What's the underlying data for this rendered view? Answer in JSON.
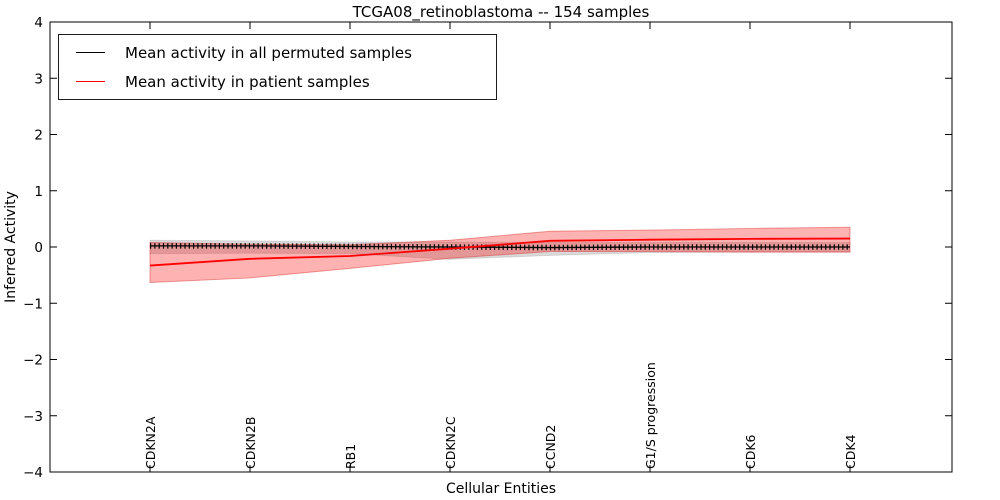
{
  "title": "TCGA08_retinoblastoma -- 154 samples",
  "chart_data": {
    "type": "line",
    "title": "TCGA08_retinoblastoma -- 154 samples",
    "xlabel": "Cellular Entities",
    "ylabel": "Inferred Activity",
    "ylim": [
      -4,
      4
    ],
    "yticks": [
      -4,
      -3,
      -2,
      -1,
      0,
      1,
      2,
      3,
      4
    ],
    "grid": false,
    "legend_position": "upper left",
    "categories": [
      "CDKN2A",
      "CDKN2B",
      "RB1",
      "CDKN2C",
      "CCND2",
      "G1/S progression",
      "CDK6",
      "CDK4"
    ],
    "series": [
      {
        "name": "Mean activity in all permuted samples",
        "color": "#000000",
        "band_color": "rgba(0,0,0,0.15)",
        "marker": "tick",
        "values": [
          0.02,
          0.02,
          0.01,
          0.0,
          -0.01,
          0.0,
          0.0,
          0.0
        ],
        "band_upper": [
          0.12,
          0.11,
          0.09,
          0.09,
          0.08,
          0.08,
          0.08,
          0.08
        ],
        "band_lower": [
          -0.12,
          -0.11,
          -0.12,
          -0.22,
          -0.15,
          -0.1,
          -0.09,
          -0.09
        ]
      },
      {
        "name": "Mean activity in patient samples",
        "color": "#ff0000",
        "band_color": "rgba(255,0,0,0.30)",
        "marker": "none",
        "values": [
          -0.33,
          -0.21,
          -0.16,
          -0.03,
          0.11,
          0.13,
          0.145,
          0.15
        ],
        "band_upper": [
          0.08,
          0.05,
          0.04,
          0.12,
          0.28,
          0.3,
          0.33,
          0.35
        ],
        "band_lower": [
          -0.63,
          -0.55,
          -0.38,
          -0.2,
          -0.08,
          -0.08,
          -0.09,
          -0.09
        ]
      }
    ],
    "legend": [
      {
        "label": "Mean activity in all permuted samples",
        "color": "#000000"
      },
      {
        "label": "Mean activity in patient samples",
        "color": "#ff0000"
      }
    ]
  }
}
